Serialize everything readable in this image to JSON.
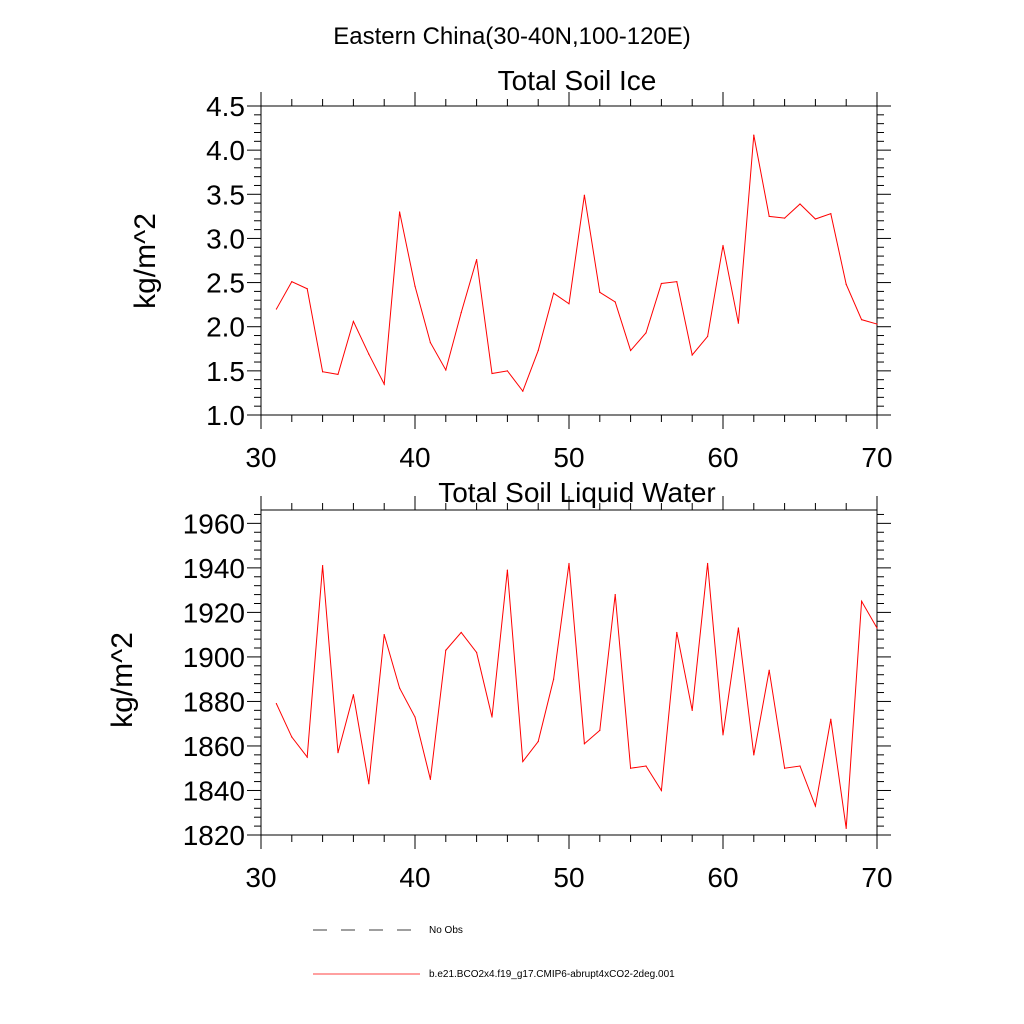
{
  "figure_title": "Eastern China(30-40N,100-120E)",
  "colors": {
    "model_line": "#ff0000",
    "obs_line": "#000000",
    "axis": "#000000"
  },
  "legend": {
    "obs_label": "No Obs",
    "model_label": "b.e21.BCO2x4.f19_g17.CMIP6-abrupt4xCO2-2deg.001"
  },
  "chart_data": [
    {
      "type": "line",
      "title": "Total Soil Ice",
      "xlabel": "",
      "ylabel": "kg/m^2",
      "xlim": [
        30,
        70
      ],
      "ylim": [
        1.0,
        4.5
      ],
      "xticks": [
        30,
        40,
        50,
        60,
        70
      ],
      "yticks": [
        1.0,
        1.5,
        2.0,
        2.5,
        3.0,
        3.5,
        4.0,
        4.5
      ],
      "ytick_labels": [
        "1.0",
        "1.5",
        "2.0",
        "2.5",
        "3.0",
        "3.5",
        "4.0",
        "4.5"
      ],
      "series": [
        {
          "name": "b.e21.BCO2x4.f19_g17.CMIP6-abrupt4xCO2-2deg.001",
          "x": [
            31,
            32,
            33,
            34,
            35,
            36,
            37,
            38,
            39,
            40,
            41,
            42,
            43,
            44,
            45,
            46,
            47,
            48,
            49,
            50,
            51,
            52,
            53,
            54,
            55,
            56,
            57,
            58,
            59,
            60,
            61,
            62,
            63,
            64,
            65,
            66,
            67,
            68,
            69,
            70
          ],
          "y": [
            2.2,
            2.51,
            2.43,
            1.49,
            1.46,
            2.06,
            1.69,
            1.35,
            3.3,
            2.46,
            1.82,
            1.51,
            2.16,
            2.76,
            1.47,
            1.5,
            1.27,
            1.73,
            2.38,
            2.26,
            3.49,
            2.39,
            2.28,
            1.73,
            1.93,
            2.49,
            2.51,
            1.68,
            1.89,
            2.92,
            2.04,
            4.17,
            3.25,
            3.23,
            3.39,
            3.22,
            3.28,
            2.48,
            2.08,
            2.03
          ]
        }
      ]
    },
    {
      "type": "line",
      "title": "Total Soil Liquid Water",
      "xlabel": "",
      "ylabel": "kg/m^2",
      "xlim": [
        30,
        70
      ],
      "ylim": [
        1820,
        1966
      ],
      "xticks": [
        30,
        40,
        50,
        60,
        70
      ],
      "yticks": [
        1820,
        1840,
        1860,
        1880,
        1900,
        1920,
        1940,
        1960
      ],
      "ytick_labels": [
        "1820",
        "1840",
        "1860",
        "1880",
        "1900",
        "1920",
        "1940",
        "1960"
      ],
      "series": [
        {
          "name": "b.e21.BCO2x4.f19_g17.CMIP6-abrupt4xCO2-2deg.001",
          "x": [
            31,
            32,
            33,
            34,
            35,
            36,
            37,
            38,
            39,
            40,
            41,
            42,
            43,
            44,
            45,
            46,
            47,
            48,
            49,
            50,
            51,
            52,
            53,
            54,
            55,
            56,
            57,
            58,
            59,
            60,
            61,
            62,
            63,
            64,
            65,
            66,
            67,
            68,
            69,
            70
          ],
          "y": [
            1879,
            1864,
            1855,
            1941,
            1857,
            1883,
            1843,
            1910,
            1886,
            1873,
            1845,
            1903,
            1911,
            1902,
            1873,
            1939,
            1853,
            1862,
            1890,
            1942,
            1861,
            1867,
            1928,
            1850,
            1851,
            1840,
            1911,
            1876,
            1942,
            1865,
            1913,
            1856,
            1894,
            1850,
            1851,
            1833,
            1872,
            1823,
            1925,
            1913
          ]
        }
      ]
    }
  ]
}
